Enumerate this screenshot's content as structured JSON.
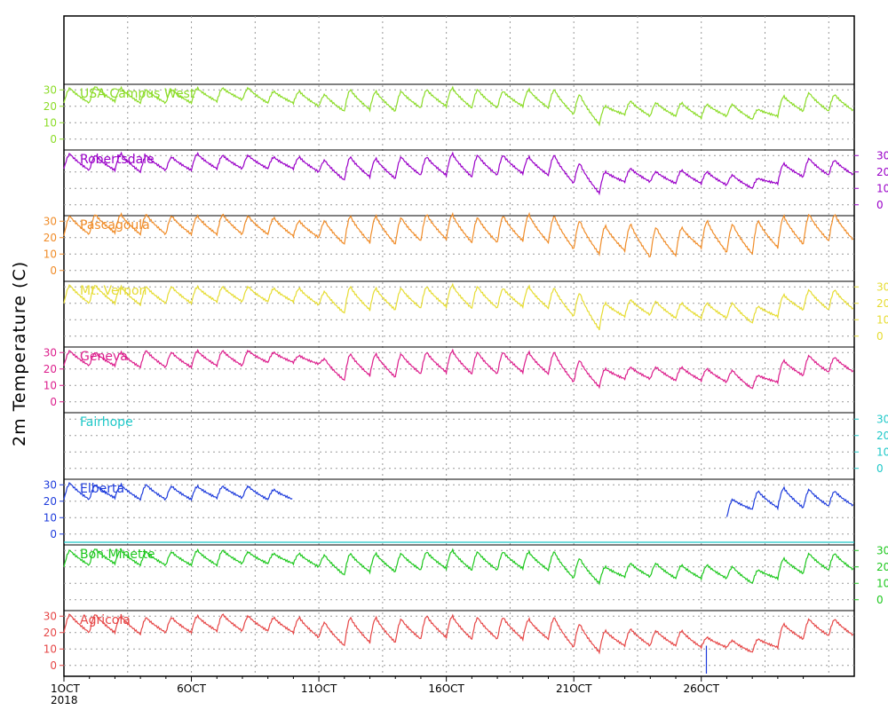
{
  "chart_data": {
    "type": "line",
    "title": "",
    "ylabel": "2m Temperature (C)",
    "x_start_label": "1OCT",
    "x_year_label": "2018",
    "x_tick_labels": [
      "1OCT",
      "6OCT",
      "11OCT",
      "16OCT",
      "21OCT",
      "26OCT"
    ],
    "x_range_days": [
      1,
      32
    ],
    "ylim": [
      -5,
      35
    ],
    "y_ticks": [
      0,
      10,
      20,
      30
    ],
    "grid": true,
    "panels": [
      {
        "name": "USA Campus West",
        "color": "#8cdc28",
        "axis_side": "left",
        "y_ticks": [
          0,
          10,
          20,
          30
        ],
        "daily_high": [
          31,
          32,
          31,
          30,
          30,
          31,
          31,
          31,
          29,
          29,
          27,
          30,
          29,
          29,
          30,
          31,
          30,
          29,
          30,
          30,
          27,
          20,
          23,
          22,
          22,
          21,
          21,
          18,
          26,
          28,
          27
        ],
        "daily_low": [
          22,
          22,
          23,
          22,
          22,
          22,
          23,
          24,
          22,
          22,
          20,
          17,
          18,
          17,
          19,
          20,
          19,
          19,
          20,
          19,
          15,
          9,
          15,
          14,
          14,
          13,
          14,
          12,
          14,
          17,
          17
        ],
        "gaps": []
      },
      {
        "name": "Robertsdale",
        "color": "#9a00c8",
        "axis_side": "right",
        "y_ticks": [
          0,
          10,
          20,
          30
        ],
        "daily_high": [
          31,
          30,
          31,
          30,
          29,
          31,
          30,
          30,
          29,
          29,
          27,
          29,
          28,
          29,
          29,
          31,
          30,
          30,
          29,
          30,
          25,
          20,
          22,
          20,
          21,
          20,
          18,
          16,
          25,
          28,
          27
        ],
        "daily_low": [
          22,
          21,
          21,
          20,
          21,
          21,
          22,
          22,
          22,
          22,
          20,
          15,
          17,
          16,
          18,
          18,
          17,
          18,
          19,
          18,
          13,
          7,
          14,
          14,
          13,
          13,
          12,
          10,
          13,
          17,
          18
        ],
        "gaps": []
      },
      {
        "name": "Pascagoula",
        "color": "#f08c28",
        "axis_side": "left",
        "y_ticks": [
          0,
          10,
          20,
          30
        ],
        "daily_high": [
          33,
          34,
          34,
          34,
          33,
          33,
          34,
          33,
          32,
          30,
          30,
          33,
          33,
          32,
          34,
          34,
          32,
          33,
          34,
          33,
          30,
          27,
          28,
          26,
          26,
          30,
          28,
          30,
          33,
          34,
          34
        ],
        "daily_low": [
          21,
          22,
          23,
          22,
          22,
          22,
          22,
          22,
          22,
          21,
          20,
          16,
          17,
          16,
          18,
          19,
          17,
          17,
          18,
          17,
          13,
          10,
          12,
          8,
          9,
          14,
          11,
          10,
          14,
          16,
          18
        ],
        "gaps": []
      },
      {
        "name": "Mt. Vernon",
        "color": "#e6dc32",
        "axis_side": "right",
        "y_ticks": [
          0,
          10,
          20,
          30
        ],
        "daily_high": [
          31,
          31,
          30,
          30,
          30,
          30,
          30,
          30,
          29,
          29,
          27,
          30,
          29,
          29,
          30,
          31,
          30,
          29,
          30,
          29,
          26,
          20,
          22,
          21,
          20,
          20,
          20,
          18,
          25,
          28,
          28
        ],
        "daily_low": [
          20,
          20,
          20,
          19,
          20,
          20,
          21,
          21,
          21,
          21,
          19,
          14,
          16,
          16,
          17,
          18,
          17,
          17,
          18,
          17,
          12,
          4,
          12,
          13,
          11,
          11,
          11,
          8,
          12,
          16,
          16
        ],
        "gaps": []
      },
      {
        "name": "Geneva",
        "color": "#dc1e8c",
        "axis_side": "left",
        "y_ticks": [
          0,
          10,
          20,
          30
        ],
        "daily_high": [
          31,
          30,
          30,
          31,
          30,
          31,
          31,
          31,
          30,
          28,
          26,
          29,
          29,
          29,
          30,
          31,
          30,
          30,
          30,
          30,
          25,
          20,
          21,
          21,
          21,
          20,
          19,
          16,
          25,
          28,
          27
        ],
        "daily_low": [
          22,
          22,
          22,
          21,
          21,
          21,
          22,
          22,
          24,
          24,
          23,
          13,
          16,
          15,
          17,
          18,
          17,
          17,
          18,
          17,
          12,
          9,
          14,
          14,
          13,
          13,
          12,
          8,
          12,
          16,
          18
        ],
        "gaps": []
      },
      {
        "name": "Fairhope",
        "color": "#1ec8c8",
        "axis_side": "right",
        "y_ticks": [
          0,
          10,
          20,
          30
        ],
        "daily_high": [],
        "daily_low": [],
        "gaps": [
          [
            1,
            32
          ]
        ]
      },
      {
        "name": "Elberta",
        "color": "#1e3cdc",
        "axis_side": "left",
        "y_ticks": [
          0,
          10,
          20,
          30
        ],
        "daily_high": [
          31,
          30,
          30,
          30,
          29,
          29,
          29,
          29,
          27,
          null,
          null,
          null,
          null,
          null,
          null,
          null,
          null,
          null,
          null,
          null,
          null,
          null,
          null,
          null,
          null,
          null,
          21,
          26,
          28,
          27,
          26
        ],
        "daily_low": [
          21,
          21,
          22,
          21,
          21,
          21,
          22,
          22,
          21,
          null,
          null,
          null,
          null,
          null,
          null,
          null,
          null,
          null,
          null,
          null,
          null,
          null,
          null,
          null,
          null,
          null,
          10,
          15,
          16,
          16,
          17
        ],
        "gaps": [
          [
            10.0,
            27.3
          ]
        ]
      },
      {
        "name": "Bon Minette",
        "color": "#1ec81e",
        "axis_side": "right",
        "y_ticks": [
          0,
          10,
          20,
          30
        ],
        "daily_high": [
          30,
          31,
          30,
          29,
          29,
          30,
          30,
          29,
          28,
          28,
          27,
          28,
          28,
          28,
          29,
          30,
          29,
          29,
          29,
          29,
          25,
          20,
          22,
          22,
          21,
          21,
          20,
          18,
          25,
          28,
          28
        ],
        "daily_low": [
          20,
          21,
          22,
          21,
          21,
          21,
          21,
          22,
          22,
          22,
          20,
          15,
          17,
          17,
          18,
          19,
          18,
          18,
          19,
          18,
          13,
          10,
          14,
          14,
          13,
          13,
          13,
          10,
          13,
          16,
          18
        ],
        "gaps": []
      },
      {
        "name": "Agricola",
        "color": "#e64646",
        "axis_side": "left",
        "y_ticks": [
          0,
          10,
          20,
          30
        ],
        "daily_high": [
          31,
          31,
          30,
          29,
          29,
          30,
          31,
          30,
          29,
          29,
          26,
          29,
          29,
          28,
          30,
          30,
          29,
          29,
          28,
          29,
          25,
          21,
          22,
          21,
          21,
          17,
          15,
          16,
          25,
          28,
          28
        ],
        "daily_low": [
          20,
          20,
          20,
          19,
          20,
          20,
          21,
          21,
          21,
          20,
          17,
          12,
          14,
          14,
          16,
          17,
          16,
          16,
          16,
          16,
          11,
          8,
          12,
          12,
          12,
          11,
          11,
          8,
          11,
          16,
          18
        ],
        "gaps": [],
        "spike": {
          "day": 26.2,
          "from": -5,
          "to": 12
        }
      }
    ]
  }
}
